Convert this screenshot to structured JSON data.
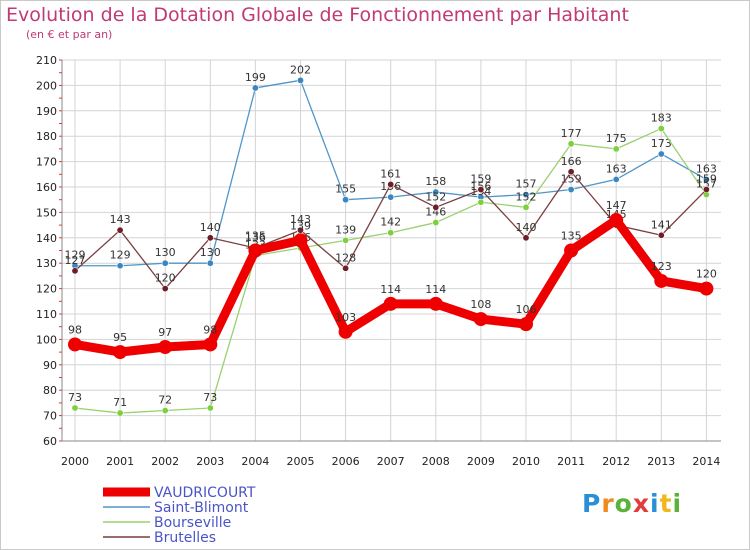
{
  "header": {
    "title": "Evolution de la Dotation Globale de Fonctionnement par Habitant",
    "subtitle": "(en € et par an)"
  },
  "logo": {
    "text": "Proxiti"
  },
  "chart_data": {
    "type": "line",
    "title": "Evolution de la Dotation Globale de Fonctionnement par Habitant",
    "subtitle": "(en € et par an)",
    "xlabel": "",
    "ylabel": "",
    "ylim": [
      60,
      210
    ],
    "yticks": [
      60,
      70,
      80,
      90,
      100,
      110,
      120,
      130,
      140,
      150,
      160,
      170,
      180,
      190,
      200,
      210
    ],
    "categories": [
      "2000",
      "2001",
      "2002",
      "2003",
      "2004",
      "2005",
      "2006",
      "2007",
      "2008",
      "2009",
      "2010",
      "2011",
      "2012",
      "2013",
      "2014"
    ],
    "grid": true,
    "legend_position": "bottom-left",
    "series": [
      {
        "name": "Saint-Blimont",
        "color": "#4f96c8",
        "marker": "#3a86c0",
        "values": [
          129,
          129,
          130,
          130,
          199,
          202,
          155,
          156,
          158,
          156,
          157,
          159,
          163,
          173,
          163
        ]
      },
      {
        "name": "Bourseville",
        "color": "#9ad070",
        "marker": "#7cd03c",
        "values": [
          73,
          71,
          72,
          73,
          133,
          136,
          139,
          142,
          146,
          154,
          152,
          177,
          175,
          183,
          157
        ]
      },
      {
        "name": "Brutelles",
        "color": "#7a3e3e",
        "marker": "#6e1e28",
        "values": [
          127,
          143,
          120,
          140,
          136,
          143,
          128,
          161,
          152,
          159,
          140,
          166,
          145,
          141,
          159
        ]
      },
      {
        "name": "VAUDRICOURT",
        "color": "#ee0000",
        "marker": "#ee0000",
        "values": [
          98,
          95,
          97,
          98,
          135,
          139,
          103,
          114,
          114,
          108,
          106,
          135,
          147,
          123,
          120
        ]
      }
    ]
  }
}
